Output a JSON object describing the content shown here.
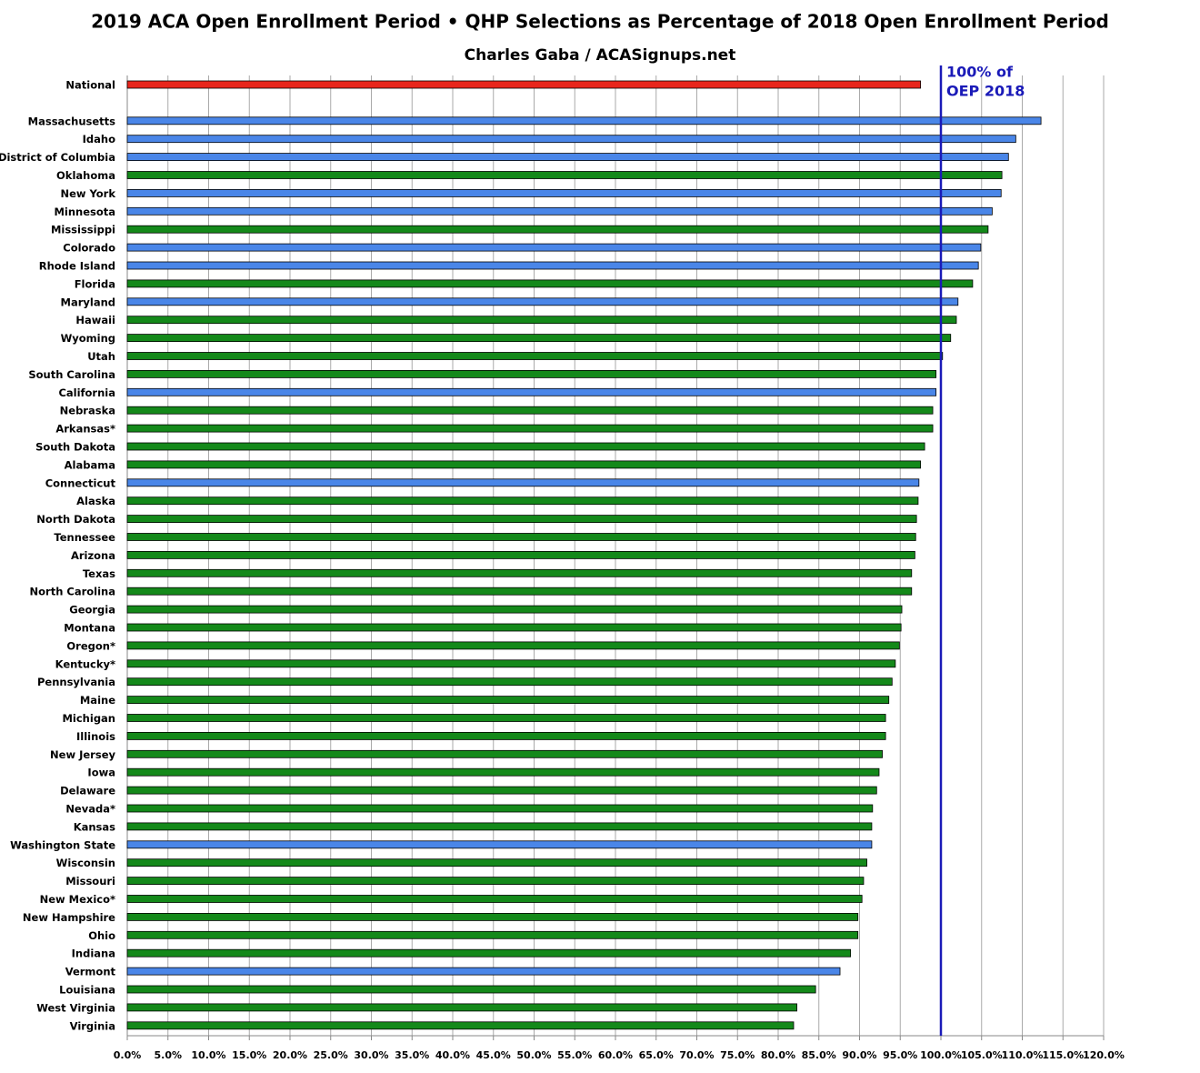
{
  "chart_data": {
    "type": "hbar",
    "title": "2019 ACA Open Enrollment Period  •  QHP Selections as Percentage of 2018 Open Enrollment Period",
    "subtitle": "Charles Gaba / ACASignups.net",
    "categories": [
      "National",
      null,
      "Massachusetts",
      "Idaho",
      "District of Columbia",
      "Oklahoma",
      "New York",
      "Minnesota",
      "Mississippi",
      "Colorado",
      "Rhode Island",
      "Florida",
      "Maryland",
      "Hawaii",
      "Wyoming",
      "Utah",
      "South Carolina",
      "California",
      "Nebraska",
      "Arkansas*",
      "South Dakota",
      "Alabama",
      "Connecticut",
      "Alaska",
      "North Dakota",
      "Tennessee",
      "Arizona",
      "Texas",
      "North Carolina",
      "Georgia",
      "Montana",
      "Oregon*",
      "Kentucky*",
      "Pennsylvania",
      "Maine",
      "Michigan",
      "Illinois",
      "New Jersey",
      "Iowa",
      "Delaware",
      "Nevada*",
      "Kansas",
      "Washington State",
      "Wisconsin",
      "Missouri",
      "New Mexico*",
      "New Hampshire",
      "Ohio",
      "Indiana",
      "Vermont",
      "Louisiana",
      "West Virginia",
      "Virginia"
    ],
    "values": [
      97.5,
      null,
      112.3,
      109.2,
      108.3,
      107.5,
      107.4,
      106.3,
      105.8,
      104.9,
      104.6,
      103.9,
      102.1,
      101.9,
      101.2,
      100.2,
      99.4,
      99.4,
      99.0,
      99.0,
      98.0,
      97.5,
      97.3,
      97.2,
      97.0,
      96.9,
      96.8,
      96.4,
      96.4,
      95.2,
      95.1,
      94.9,
      94.4,
      94.0,
      93.6,
      93.2,
      93.2,
      92.8,
      92.4,
      92.1,
      91.6,
      91.5,
      91.5,
      90.9,
      90.5,
      90.3,
      89.8,
      89.8,
      88.9,
      87.6,
      84.6,
      82.3,
      81.9
    ],
    "colors": [
      "#e8261c",
      null,
      "#4a86e8",
      "#4a86e8",
      "#4a86e8",
      "#14891a",
      "#4a86e8",
      "#4a86e8",
      "#14891a",
      "#4a86e8",
      "#4a86e8",
      "#14891a",
      "#4a86e8",
      "#14891a",
      "#14891a",
      "#14891a",
      "#14891a",
      "#4a86e8",
      "#14891a",
      "#14891a",
      "#14891a",
      "#14891a",
      "#4a86e8",
      "#14891a",
      "#14891a",
      "#14891a",
      "#14891a",
      "#14891a",
      "#14891a",
      "#14891a",
      "#14891a",
      "#14891a",
      "#14891a",
      "#14891a",
      "#14891a",
      "#14891a",
      "#14891a",
      "#14891a",
      "#14891a",
      "#14891a",
      "#14891a",
      "#14891a",
      "#4a86e8",
      "#14891a",
      "#14891a",
      "#14891a",
      "#14891a",
      "#14891a",
      "#14891a",
      "#4a86e8",
      "#14891a",
      "#14891a",
      "#14891a"
    ],
    "xlim": [
      0,
      120
    ],
    "xticks": [
      {
        "value": 0,
        "label": "0.0%"
      },
      {
        "value": 5,
        "label": "5.0%"
      },
      {
        "value": 10,
        "label": "10.0%"
      },
      {
        "value": 15,
        "label": "15.0%"
      },
      {
        "value": 20,
        "label": "20.0%"
      },
      {
        "value": 25,
        "label": "25.0%"
      },
      {
        "value": 30,
        "label": "30.0%"
      },
      {
        "value": 35,
        "label": "35.0%"
      },
      {
        "value": 40,
        "label": "40.0%"
      },
      {
        "value": 45,
        "label": "45.0%"
      },
      {
        "value": 50,
        "label": "50.0%"
      },
      {
        "value": 55,
        "label": "55.0%"
      },
      {
        "value": 60,
        "label": "60.0%"
      },
      {
        "value": 65,
        "label": "65.0%"
      },
      {
        "value": 70,
        "label": "70.0%"
      },
      {
        "value": 75,
        "label": "75.0%"
      },
      {
        "value": 80,
        "label": "80.0%"
      },
      {
        "value": 85,
        "label": "85.0%"
      },
      {
        "value": 90,
        "label": "90.0%"
      },
      {
        "value": 95,
        "label": "95.0%"
      },
      {
        "value": 100,
        "label": "100.0%"
      },
      {
        "value": 105,
        "label": "105.0%"
      },
      {
        "value": 110,
        "label": "110.0%"
      },
      {
        "value": 115,
        "label": "115.0%"
      },
      {
        "value": 120,
        "label": "120.0%"
      }
    ],
    "grid": true,
    "reference_line": {
      "value": 100,
      "color": "#1a1ab8",
      "label": [
        "100% of",
        "OEP 2018"
      ]
    }
  }
}
